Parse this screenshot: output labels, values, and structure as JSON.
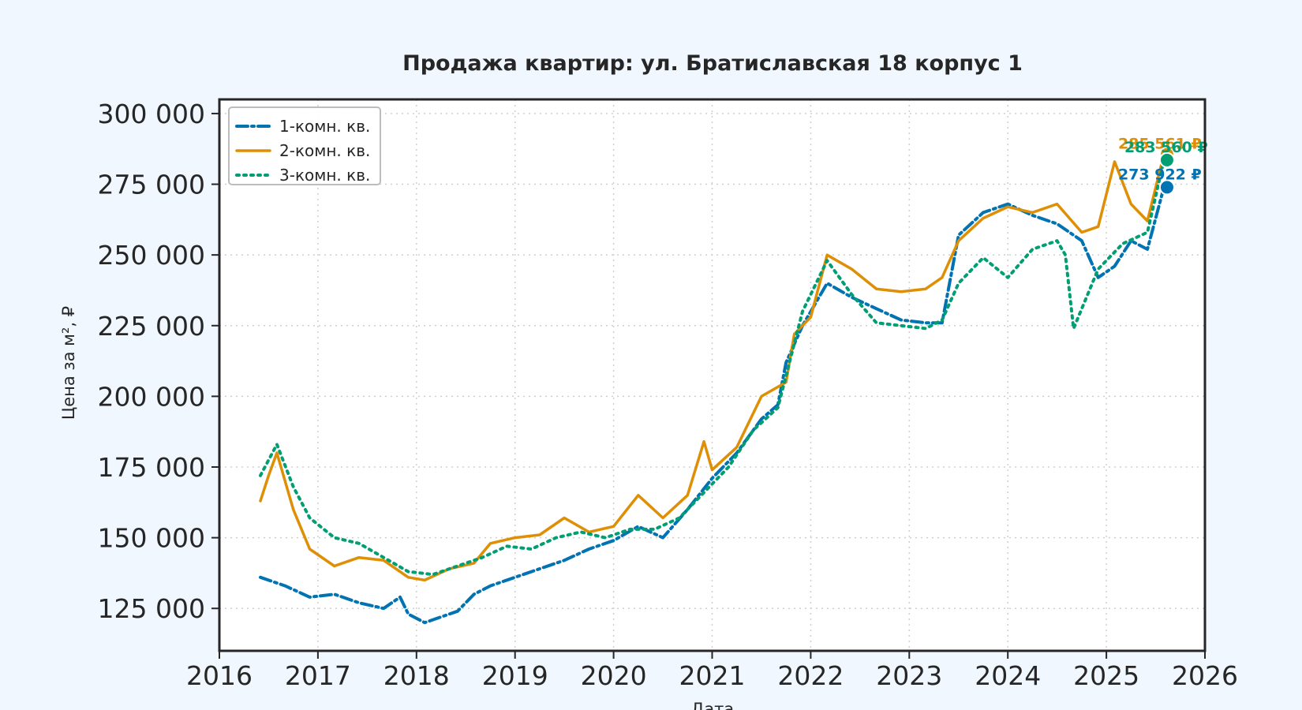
{
  "chart_data": {
    "type": "line",
    "title": "Продажа квартир: ул. Братиславская 18 корпус 1",
    "xlabel": "Дата",
    "ylabel": "Цена за м², ₽",
    "xlim": [
      "2016-01-01",
      "2026-01-01"
    ],
    "ylim": [
      110000,
      305000
    ],
    "x_ticks": [
      "2016",
      "2017",
      "2018",
      "2019",
      "2020",
      "2021",
      "2022",
      "2023",
      "2024",
      "2025",
      "2026"
    ],
    "y_ticks": [
      125000,
      150000,
      175000,
      200000,
      225000,
      250000,
      275000,
      300000
    ],
    "y_tick_labels": [
      "125 000",
      "150 000",
      "175 000",
      "200 000",
      "225 000",
      "250 000",
      "275 000",
      "300 000"
    ],
    "grid": true,
    "legend_position": "top-left",
    "series": [
      {
        "name": "1-комн. кв.",
        "color": "#0173b2",
        "style": "dashdot",
        "points": [
          [
            "2016-06",
            136000
          ],
          [
            "2016-09",
            133000
          ],
          [
            "2016-12",
            129000
          ],
          [
            "2017-03",
            130000
          ],
          [
            "2017-06",
            127000
          ],
          [
            "2017-09",
            125000
          ],
          [
            "2017-11",
            129000
          ],
          [
            "2017-12",
            123000
          ],
          [
            "2018-02",
            120000
          ],
          [
            "2018-04",
            122000
          ],
          [
            "2018-06",
            124000
          ],
          [
            "2018-08",
            130000
          ],
          [
            "2018-10",
            133000
          ],
          [
            "2019-01",
            136000
          ],
          [
            "2019-04",
            139000
          ],
          [
            "2019-07",
            142000
          ],
          [
            "2019-10",
            146000
          ],
          [
            "2020-01",
            149000
          ],
          [
            "2020-04",
            154000
          ],
          [
            "2020-07",
            150000
          ],
          [
            "2020-10",
            160000
          ],
          [
            "2021-01",
            171000
          ],
          [
            "2021-04",
            180000
          ],
          [
            "2021-07",
            192000
          ],
          [
            "2021-09",
            197000
          ],
          [
            "2021-10",
            212000
          ],
          [
            "2021-12",
            225000
          ],
          [
            "2022-03",
            240000
          ],
          [
            "2022-06",
            235000
          ],
          [
            "2022-09",
            231000
          ],
          [
            "2022-12",
            227000
          ],
          [
            "2023-03",
            226000
          ],
          [
            "2023-05",
            226000
          ],
          [
            "2023-07",
            257000
          ],
          [
            "2023-10",
            265000
          ],
          [
            "2024-01",
            268000
          ],
          [
            "2024-04",
            264000
          ],
          [
            "2024-07",
            261000
          ],
          [
            "2024-10",
            255000
          ],
          [
            "2024-12",
            242000
          ],
          [
            "2025-02",
            246000
          ],
          [
            "2025-04",
            255000
          ],
          [
            "2025-06",
            252000
          ],
          [
            "2025-08",
            273922
          ]
        ]
      },
      {
        "name": "2-комн. кв.",
        "color": "#de8f05",
        "style": "solid",
        "points": [
          [
            "2016-06",
            163000
          ],
          [
            "2016-07",
            172000
          ],
          [
            "2016-08",
            180000
          ],
          [
            "2016-10",
            160000
          ],
          [
            "2016-12",
            146000
          ],
          [
            "2017-03",
            140000
          ],
          [
            "2017-06",
            143000
          ],
          [
            "2017-09",
            142000
          ],
          [
            "2017-12",
            136000
          ],
          [
            "2018-02",
            135000
          ],
          [
            "2018-05",
            139000
          ],
          [
            "2018-08",
            141000
          ],
          [
            "2018-10",
            148000
          ],
          [
            "2019-01",
            150000
          ],
          [
            "2019-04",
            151000
          ],
          [
            "2019-07",
            157000
          ],
          [
            "2019-10",
            152000
          ],
          [
            "2020-01",
            154000
          ],
          [
            "2020-04",
            165000
          ],
          [
            "2020-07",
            157000
          ],
          [
            "2020-10",
            165000
          ],
          [
            "2020-12",
            184000
          ],
          [
            "2021-01",
            174000
          ],
          [
            "2021-04",
            182000
          ],
          [
            "2021-07",
            200000
          ],
          [
            "2021-10",
            205000
          ],
          [
            "2021-11",
            222000
          ],
          [
            "2022-01",
            228000
          ],
          [
            "2022-03",
            250000
          ],
          [
            "2022-06",
            245000
          ],
          [
            "2022-09",
            238000
          ],
          [
            "2022-12",
            237000
          ],
          [
            "2023-03",
            238000
          ],
          [
            "2023-05",
            242000
          ],
          [
            "2023-07",
            255000
          ],
          [
            "2023-10",
            263000
          ],
          [
            "2024-01",
            267000
          ],
          [
            "2024-04",
            265000
          ],
          [
            "2024-07",
            268000
          ],
          [
            "2024-10",
            258000
          ],
          [
            "2024-12",
            260000
          ],
          [
            "2025-02",
            283000
          ],
          [
            "2025-04",
            268000
          ],
          [
            "2025-06",
            262000
          ],
          [
            "2025-08",
            285561
          ]
        ]
      },
      {
        "name": "3-комн. кв.",
        "color": "#029e73",
        "style": "dotted",
        "points": [
          [
            "2016-06",
            172000
          ],
          [
            "2016-08",
            183000
          ],
          [
            "2016-10",
            168000
          ],
          [
            "2016-12",
            157000
          ],
          [
            "2017-03",
            150000
          ],
          [
            "2017-06",
            148000
          ],
          [
            "2017-09",
            143000
          ],
          [
            "2017-12",
            138000
          ],
          [
            "2018-03",
            137000
          ],
          [
            "2018-06",
            140000
          ],
          [
            "2018-09",
            143000
          ],
          [
            "2018-12",
            147000
          ],
          [
            "2019-03",
            146000
          ],
          [
            "2019-06",
            150000
          ],
          [
            "2019-09",
            152000
          ],
          [
            "2019-12",
            150000
          ],
          [
            "2020-03",
            153000
          ],
          [
            "2020-06",
            153000
          ],
          [
            "2020-09",
            157000
          ],
          [
            "2020-12",
            166000
          ],
          [
            "2021-03",
            175000
          ],
          [
            "2021-06",
            188000
          ],
          [
            "2021-09",
            196000
          ],
          [
            "2021-12",
            230000
          ],
          [
            "2022-03",
            248000
          ],
          [
            "2022-06",
            236000
          ],
          [
            "2022-09",
            226000
          ],
          [
            "2022-12",
            225000
          ],
          [
            "2023-03",
            224000
          ],
          [
            "2023-05",
            227000
          ],
          [
            "2023-07",
            240000
          ],
          [
            "2023-10",
            249000
          ],
          [
            "2024-01",
            242000
          ],
          [
            "2024-04",
            252000
          ],
          [
            "2024-07",
            255000
          ],
          [
            "2024-08",
            250000
          ],
          [
            "2024-09",
            224000
          ],
          [
            "2024-12",
            245000
          ],
          [
            "2025-03",
            254000
          ],
          [
            "2025-06",
            258000
          ],
          [
            "2025-08",
            283560
          ]
        ]
      }
    ],
    "end_labels": [
      {
        "text": "285 561 ₽",
        "value": 285561,
        "color": "#de8f05"
      },
      {
        "text": "283 560 ₽",
        "value": 283560,
        "color": "#029e73"
      },
      {
        "text": "273 922 ₽",
        "value": 273922,
        "color": "#0173b2"
      }
    ]
  }
}
